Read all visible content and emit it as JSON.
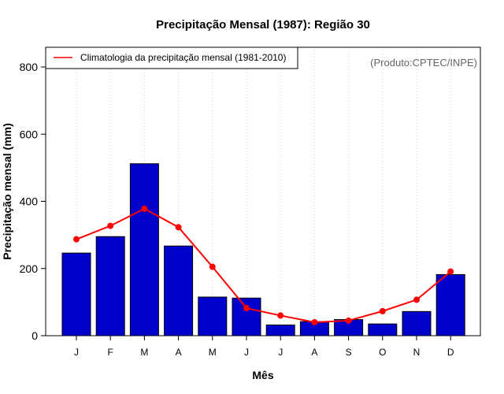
{
  "chart_data": {
    "type": "bar",
    "title": "Precipitação Mensal (1987): Região 30",
    "xlabel": "Mês",
    "ylabel": "Precipitação mensal (mm)",
    "ylim": [
      0,
      800
    ],
    "yticks": [
      0,
      200,
      400,
      600,
      800
    ],
    "grid": "vertical dotted",
    "categories": [
      "J",
      "F",
      "M",
      "A",
      "M",
      "J",
      "J",
      "A",
      "S",
      "O",
      "N",
      "D"
    ],
    "series": [
      {
        "name": "Precipitação mensal (1987)",
        "type": "bar",
        "color": "#0000cc",
        "values": [
          246,
          295,
          512,
          267,
          115,
          112,
          32,
          42,
          48,
          35,
          72,
          182
        ]
      },
      {
        "name": "Climatologia da precipitação mensal (1981-2010)",
        "type": "line",
        "color": "#ff0000",
        "values": [
          287,
          327,
          378,
          323,
          205,
          82,
          60,
          40,
          45,
          73,
          107,
          191
        ]
      }
    ],
    "legend": {
      "position": "top-left",
      "entries": [
        "Climatologia da precipitação mensal (1981-2010)"
      ]
    },
    "annotation": "(Produto:CPTEC/INPE)"
  }
}
